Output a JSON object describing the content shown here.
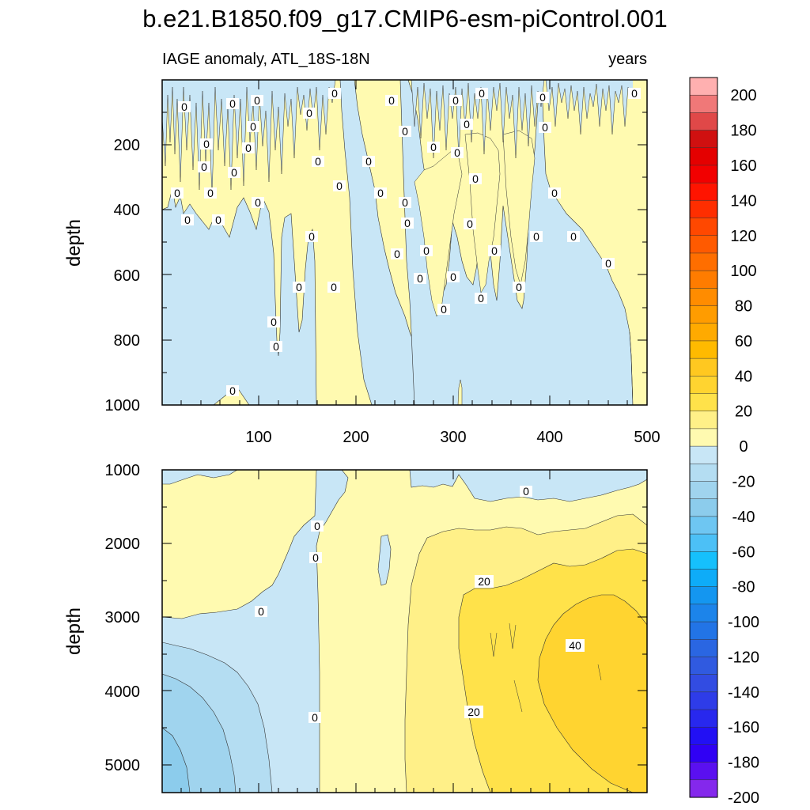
{
  "chart_data": {
    "type": "contour",
    "title": "b.e21.B1850.f09_g17.CMIP6-esm-piControl.001",
    "subtitle_left": "IAGE anomaly, ATL_18S-18N",
    "subtitle_right": "years",
    "x_ticks": [
      "100",
      "200",
      "300",
      "400",
      "500"
    ],
    "xlim": [
      0,
      500
    ],
    "panels": [
      {
        "name": "upper",
        "ylabel": "depth",
        "ylim": [
          0,
          1000
        ],
        "y_ticks": [
          "200",
          "400",
          "600",
          "800",
          "1000"
        ],
        "contour_labels": [
          "0"
        ]
      },
      {
        "name": "lower",
        "ylabel": "depth",
        "ylim": [
          1000,
          5375
        ],
        "y_ticks": [
          "1000",
          "2000",
          "3000",
          "4000",
          "5000"
        ],
        "contour_labels": [
          "0",
          "20",
          "40"
        ]
      }
    ],
    "colorbar": {
      "labels": [
        "200",
        "180",
        "160",
        "140",
        "120",
        "100",
        "80",
        "60",
        "40",
        "20",
        "0",
        "-20",
        "-40",
        "-60",
        "-80",
        "-100",
        "-120",
        "-140",
        "-160",
        "-180",
        "-200"
      ],
      "colors": [
        "#ffb0b0",
        "#f07878",
        "#e04848",
        "#d01010",
        "#e40000",
        "#f20000",
        "#ff1400",
        "#ff2e00",
        "#ff4800",
        "#ff5a00",
        "#ff6e00",
        "#ff7c00",
        "#ff8c00",
        "#ff9c00",
        "#ffaa00",
        "#ffba00",
        "#ffc820",
        "#ffd430",
        "#ffe24a",
        "#fff088",
        "#fffab0",
        "#c8e6f6",
        "#b4ddf2",
        "#a0d4ee",
        "#8cccec",
        "#6ec6f2",
        "#4cc0f6",
        "#16c0fc",
        "#0eacf8",
        "#1496f0",
        "#1c84ea",
        "#2274e6",
        "#2a66e2",
        "#305ae0",
        "#324ce2",
        "#2e3ce8",
        "#2828ee",
        "#2210f4",
        "#3000f4",
        "#5a10f0",
        "#8428ec"
      ]
    },
    "palette": {
      "light_yellow": "#fffab0",
      "yellow2": "#fff088",
      "yellow3": "#ffe24a",
      "yellow4": "#ffd430",
      "light_blue": "#c8e6f6",
      "blue2": "#b4ddf2",
      "blue3": "#a0d4ee",
      "blue4": "#8cccec"
    }
  }
}
